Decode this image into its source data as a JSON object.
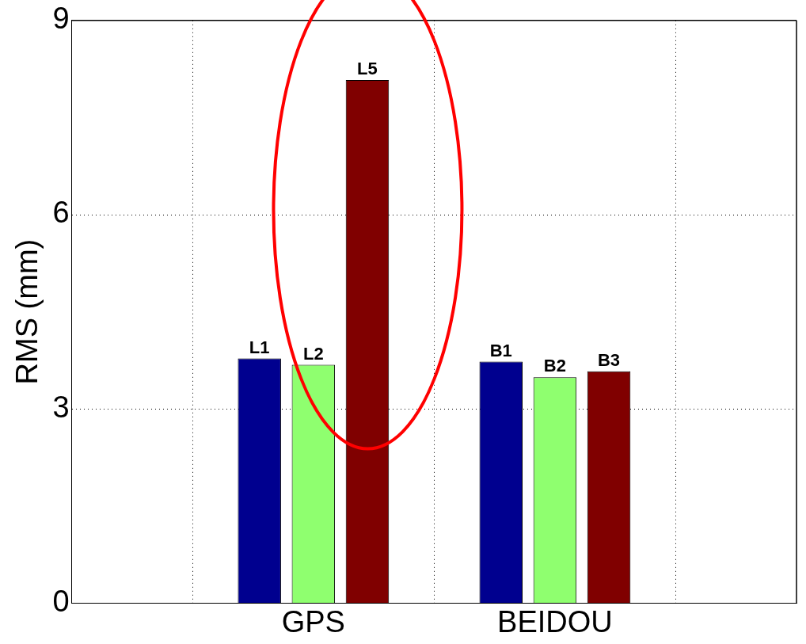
{
  "chart_data": {
    "type": "bar",
    "ylabel": "RMS (mm)",
    "categories": [
      "GPS",
      "BEIDOU"
    ],
    "series": [
      {
        "color": "#00008f",
        "values": [
          3.78,
          3.73
        ]
      },
      {
        "color": "#8fff6f",
        "values": [
          3.68,
          3.49
        ]
      },
      {
        "color": "#800000",
        "values": [
          8.08,
          3.58
        ]
      }
    ],
    "ylim": [
      0,
      9
    ],
    "yticks": [
      0,
      3,
      6,
      9
    ],
    "grid": true,
    "legend": false,
    "annotations": [
      "L1",
      "L2",
      "L5",
      "B1",
      "B2",
      "B3"
    ]
  }
}
